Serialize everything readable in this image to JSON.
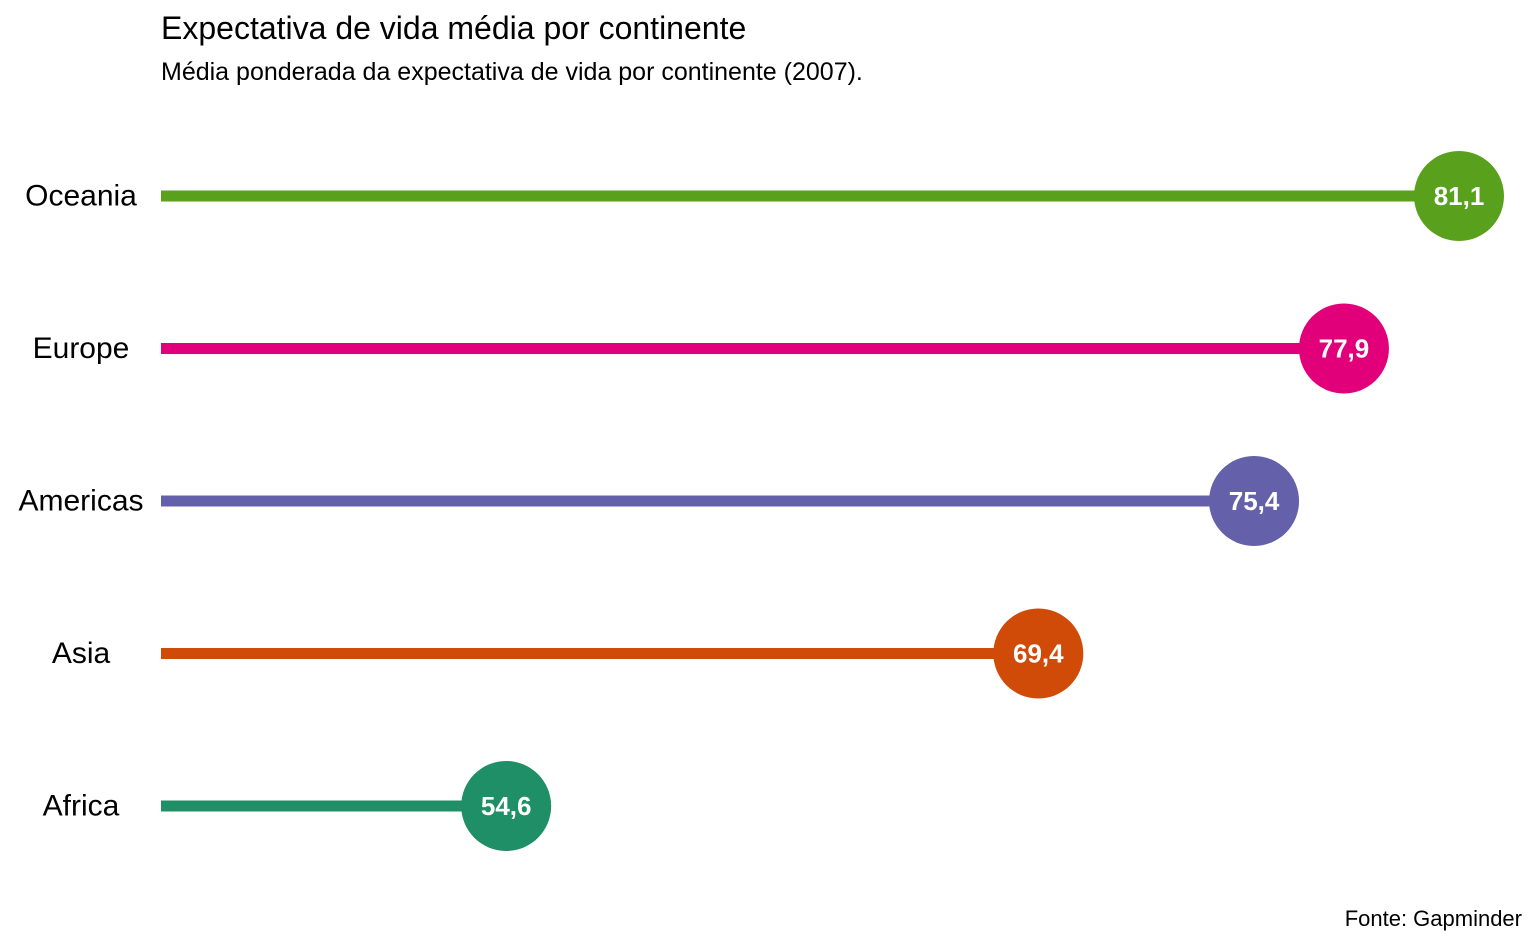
{
  "chart_data": {
    "type": "lollipop",
    "title": "Expectativa de vida média por continente",
    "subtitle": "Média ponderada da expectativa de vida por continente (2007).",
    "caption": "Fonte: Gapminder",
    "categories": [
      "Oceania",
      "Europe",
      "Americas",
      "Asia",
      "Africa"
    ],
    "values": [
      81.1,
      77.9,
      75.4,
      69.4,
      54.6
    ],
    "value_labels": [
      "81,1",
      "77,9",
      "75,4",
      "69,4",
      "54,6"
    ],
    "colors": [
      "#59A01D",
      "#E2007A",
      "#6460A9",
      "#D04A08",
      "#1E8F67"
    ],
    "xlim": [
      45,
      81.1
    ],
    "grid": false,
    "legend": "none"
  }
}
